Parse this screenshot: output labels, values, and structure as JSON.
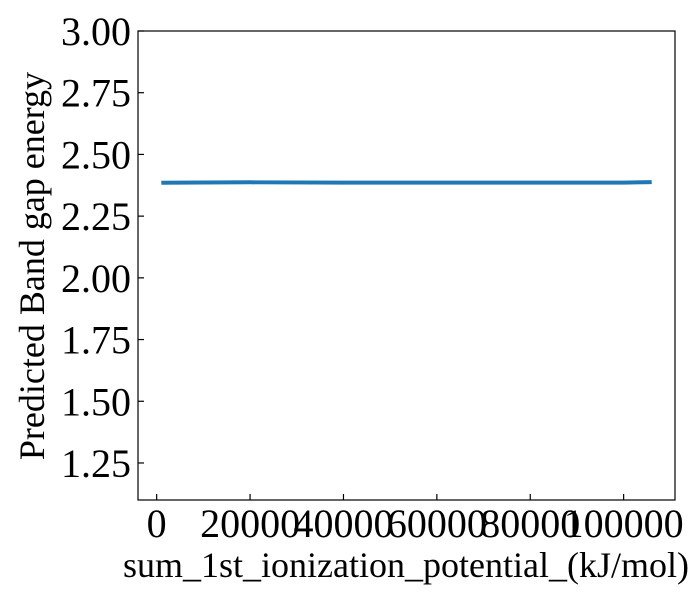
{
  "chart_data": {
    "type": "line",
    "title": "",
    "xlabel": "sum_1st_ionization_potential_(kJ/mol)",
    "ylabel": "Predicted Band gap energy",
    "xlim": [
      -4000,
      111000
    ],
    "ylim": [
      1.1,
      3.0
    ],
    "x_ticks": [
      0,
      20000,
      40000,
      60000,
      80000,
      100000
    ],
    "x_tick_labels": [
      "0",
      "20000",
      "40000",
      "60000",
      "80000",
      "100000"
    ],
    "y_ticks": [
      1.25,
      1.5,
      1.75,
      2.0,
      2.25,
      2.5,
      2.75,
      3.0
    ],
    "y_tick_labels": [
      "1.25",
      "1.50",
      "1.75",
      "2.00",
      "2.25",
      "2.50",
      "2.75",
      "3.00"
    ],
    "grid": false,
    "series": [
      {
        "color": "#1f77b4",
        "x": [
          1000,
          5000,
          20000,
          40000,
          60000,
          80000,
          100000,
          106000
        ],
        "y": [
          2.385,
          2.386,
          2.387,
          2.386,
          2.386,
          2.386,
          2.386,
          2.388
        ]
      }
    ]
  }
}
